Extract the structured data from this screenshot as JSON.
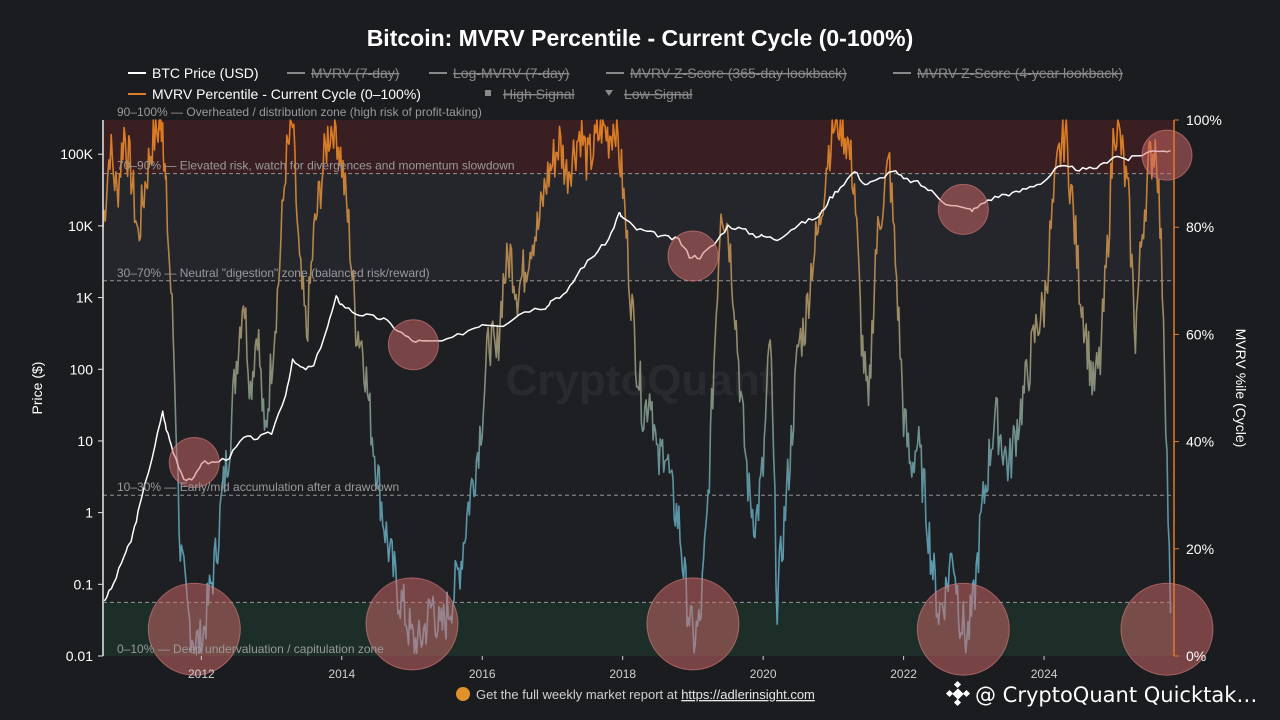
{
  "chart_data": {
    "type": "line",
    "title": "Bitcoin: MVRV Percentile - Current Cycle (0-100%)",
    "legend": [
      {
        "name": "BTC Price (USD)",
        "color": "#ffffff",
        "style": "line",
        "hidden": false
      },
      {
        "name": "MVRV (7-day)",
        "color": "#8a8a8a",
        "style": "line",
        "hidden": true
      },
      {
        "name": "Log-MVRV (7-day)",
        "color": "#8a8a8a",
        "style": "line",
        "hidden": true
      },
      {
        "name": "MVRV Z-Score (365-day lookback)",
        "color": "#8a8a8a",
        "style": "line",
        "hidden": true
      },
      {
        "name": "MVRV Z-Score (4-year lookback)",
        "color": "#8a8a8a",
        "style": "line",
        "hidden": true
      },
      {
        "name": "MVRV Percentile - Current Cycle (0–100%)",
        "color": "#e07b2a",
        "style": "line",
        "hidden": false
      },
      {
        "name": "High Signal",
        "color": "#8a8a8a",
        "style": "square",
        "hidden": true
      },
      {
        "name": "Low Signal",
        "color": "#8a8a8a",
        "style": "triangle",
        "hidden": true
      }
    ],
    "ylabel_left": "Price ($)",
    "ylabel_right": "MVRV %ile (Cycle)",
    "y_left_scale": "log",
    "y_left_range": [
      0.01,
      300000
    ],
    "y_left_ticks": [
      {
        "value": 0.01,
        "label": "0.01"
      },
      {
        "value": 0.1,
        "label": "0.1"
      },
      {
        "value": 1,
        "label": "1"
      },
      {
        "value": 10,
        "label": "10"
      },
      {
        "value": 100,
        "label": "100"
      },
      {
        "value": 1000,
        "label": "1K"
      },
      {
        "value": 10000,
        "label": "10K"
      },
      {
        "value": 100000,
        "label": "100K"
      }
    ],
    "y_right_range": [
      0,
      100
    ],
    "y_right_ticks": [
      {
        "value": 0,
        "label": "0%"
      },
      {
        "value": 20,
        "label": "20%"
      },
      {
        "value": 40,
        "label": "40%"
      },
      {
        "value": 60,
        "label": "60%"
      },
      {
        "value": 80,
        "label": "80%"
      },
      {
        "value": 100,
        "label": "100%"
      }
    ],
    "x_range": [
      2010.6,
      2025.85
    ],
    "x_ticks": [
      {
        "value": 2012,
        "label": "2012"
      },
      {
        "value": 2014,
        "label": "2014"
      },
      {
        "value": 2016,
        "label": "2016"
      },
      {
        "value": 2018,
        "label": "2018"
      },
      {
        "value": 2020,
        "label": "2020"
      },
      {
        "value": 2022,
        "label": "2022"
      },
      {
        "value": 2024,
        "label": "2024"
      }
    ],
    "zones": [
      {
        "from": 90,
        "to": 100,
        "color": "#5a1f1f",
        "opacity": 0.45,
        "line_color": "#c04848",
        "label": "90–100% — Overheated / distribution zone (high risk of profit-taking)"
      },
      {
        "from": 70,
        "to": 90,
        "color": "#2c2d33",
        "opacity": 0.5,
        "line_color": "#bbbbbb",
        "label": "70–90% — Elevated risk, watch for divergences and momentum slowdown"
      },
      {
        "from": 30,
        "to": 70,
        "color": "#1d1e22",
        "opacity": 0.0,
        "line_color": "#bbbbbb",
        "label": "30–70% — Neutral \"digestion\" zone (balanced risk/reward)"
      },
      {
        "from": 10,
        "to": 30,
        "color": "#1d1e22",
        "opacity": 0.0,
        "line_color": "#bbbbbb",
        "label": "10–30% — Early/mid accumulation after a drawdown"
      },
      {
        "from": 0,
        "to": 10,
        "color": "#1b3a2c",
        "opacity": 0.55,
        "line_color": "#bbbbbb",
        "label": "0–10% — Deep undervaluation / capitulation zone"
      }
    ],
    "series": [
      {
        "name": "BTC Price (USD)",
        "axis": "left",
        "x": [
          2010.62,
          2010.75,
          2010.9,
          2011.0,
          2011.1,
          2011.3,
          2011.45,
          2011.5,
          2011.6,
          2011.75,
          2011.9,
          2012.0,
          2012.2,
          2012.4,
          2012.6,
          2012.8,
          2013.0,
          2013.2,
          2013.3,
          2013.45,
          2013.6,
          2013.8,
          2013.92,
          2014.0,
          2014.2,
          2014.4,
          2014.6,
          2014.8,
          2015.0,
          2015.2,
          2015.5,
          2015.8,
          2016.0,
          2016.3,
          2016.6,
          2016.9,
          2017.0,
          2017.2,
          2017.4,
          2017.6,
          2017.8,
          2017.95,
          2018.0,
          2018.2,
          2018.4,
          2018.6,
          2018.8,
          2018.95,
          2019.1,
          2019.3,
          2019.5,
          2019.7,
          2019.9,
          2020.0,
          2020.2,
          2020.4,
          2020.6,
          2020.8,
          2020.95,
          2021.1,
          2021.3,
          2021.45,
          2021.6,
          2021.85,
          2022.0,
          2022.2,
          2022.4,
          2022.6,
          2022.9,
          2023.0,
          2023.2,
          2023.4,
          2023.6,
          2023.8,
          2024.0,
          2024.2,
          2024.4,
          2024.6,
          2024.8,
          2025.0,
          2025.2,
          2025.4,
          2025.6,
          2025.8
        ],
        "y": [
          0.06,
          0.1,
          0.25,
          0.4,
          1.0,
          6,
          25,
          15,
          7,
          3,
          3,
          5,
          5,
          6,
          11,
          11,
          13,
          45,
          130,
          100,
          110,
          400,
          1000,
          800,
          600,
          550,
          500,
          350,
          250,
          240,
          250,
          350,
          430,
          420,
          650,
          740,
          950,
          1150,
          2500,
          4000,
          6500,
          15000,
          13000,
          9000,
          8000,
          7000,
          6400,
          3800,
          3700,
          5500,
          10000,
          9000,
          7300,
          7200,
          6500,
          9000,
          11500,
          13500,
          24000,
          35000,
          58000,
          38000,
          42000,
          60000,
          45000,
          40000,
          30000,
          21000,
          17000,
          16800,
          23000,
          27000,
          29000,
          35000,
          42000,
          66000,
          64000,
          60000,
          68000,
          95000,
          85000,
          100000,
          115000,
          112000
        ]
      },
      {
        "name": "MVRV Percentile - Current Cycle (0–100%)",
        "axis": "right",
        "x": [
          2010.6,
          2010.7,
          2010.8,
          2010.9,
          2011.0,
          2011.1,
          2011.2,
          2011.3,
          2011.4,
          2011.45,
          2011.5,
          2011.6,
          2011.7,
          2011.8,
          2011.9,
          2012.0,
          2012.1,
          2012.2,
          2012.3,
          2012.4,
          2012.5,
          2012.6,
          2012.7,
          2012.8,
          2012.9,
          2013.0,
          2013.1,
          2013.2,
          2013.3,
          2013.4,
          2013.5,
          2013.6,
          2013.7,
          2013.8,
          2013.9,
          2014.0,
          2014.1,
          2014.2,
          2014.3,
          2014.4,
          2014.5,
          2014.6,
          2014.7,
          2014.8,
          2014.9,
          2015.0,
          2015.1,
          2015.2,
          2015.3,
          2015.4,
          2015.5,
          2015.6,
          2015.7,
          2015.8,
          2015.9,
          2016.0,
          2016.1,
          2016.2,
          2016.3,
          2016.4,
          2016.5,
          2016.6,
          2016.7,
          2016.8,
          2016.9,
          2017.0,
          2017.1,
          2017.2,
          2017.3,
          2017.4,
          2017.5,
          2017.6,
          2017.7,
          2017.8,
          2017.9,
          2018.0,
          2018.1,
          2018.2,
          2018.3,
          2018.4,
          2018.5,
          2018.6,
          2018.7,
          2018.8,
          2018.9,
          2019.0,
          2019.1,
          2019.2,
          2019.3,
          2019.4,
          2019.5,
          2019.6,
          2019.7,
          2019.8,
          2019.9,
          2020.0,
          2020.1,
          2020.2,
          2020.3,
          2020.4,
          2020.5,
          2020.6,
          2020.7,
          2020.8,
          2020.9,
          2021.0,
          2021.1,
          2021.2,
          2021.3,
          2021.4,
          2021.5,
          2021.6,
          2021.7,
          2021.8,
          2021.9,
          2022.0,
          2022.1,
          2022.2,
          2022.3,
          2022.4,
          2022.5,
          2022.6,
          2022.7,
          2022.8,
          2022.9,
          2023.0,
          2023.1,
          2023.2,
          2023.3,
          2023.4,
          2023.5,
          2023.6,
          2023.7,
          2023.8,
          2023.9,
          2024.0,
          2024.1,
          2024.2,
          2024.3,
          2024.4,
          2024.5,
          2024.6,
          2024.7,
          2024.8,
          2024.9,
          2025.0,
          2025.1,
          2025.2,
          2025.3,
          2025.4,
          2025.5,
          2025.6,
          2025.7,
          2025.8
        ],
        "y": [
          80,
          95,
          86,
          98,
          90,
          78,
          88,
          96,
          99,
          100,
          85,
          60,
          20,
          8,
          3,
          2,
          10,
          18,
          30,
          40,
          55,
          68,
          50,
          62,
          40,
          55,
          70,
          92,
          99,
          72,
          60,
          78,
          88,
          97,
          100,
          92,
          80,
          62,
          58,
          45,
          35,
          25,
          18,
          12,
          8,
          3,
          2,
          6,
          10,
          4,
          8,
          12,
          18,
          28,
          35,
          45,
          60,
          55,
          70,
          75,
          68,
          72,
          78,
          80,
          88,
          92,
          96,
          90,
          94,
          98,
          92,
          95,
          99,
          97,
          100,
          88,
          70,
          55,
          45,
          50,
          35,
          40,
          30,
          25,
          12,
          3,
          6,
          25,
          55,
          85,
          80,
          65,
          45,
          30,
          25,
          35,
          60,
          10,
          25,
          40,
          58,
          62,
          74,
          80,
          92,
          99,
          100,
          96,
          88,
          60,
          45,
          75,
          85,
          92,
          70,
          45,
          35,
          40,
          30,
          18,
          8,
          12,
          20,
          8,
          3,
          10,
          25,
          35,
          45,
          40,
          35,
          42,
          48,
          55,
          62,
          65,
          80,
          92,
          98,
          85,
          70,
          60,
          50,
          55,
          75,
          100,
          95,
          85,
          60,
          80,
          92,
          96,
          65,
          8
        ]
      }
    ],
    "highlight_circles": [
      {
        "x": 2011.9,
        "y": 5,
        "axis": "left"
      },
      {
        "x": 2015.02,
        "y": 220,
        "axis": "left"
      },
      {
        "x": 2019.0,
        "y": 3800,
        "axis": "left"
      },
      {
        "x": 2022.85,
        "y": 17000,
        "axis": "left"
      },
      {
        "x": 2025.75,
        "y": 97000,
        "axis": "left"
      },
      {
        "x": 2011.9,
        "y": 5,
        "axis": "right"
      },
      {
        "x": 2015.0,
        "y": 6,
        "axis": "right"
      },
      {
        "x": 2019.0,
        "y": 6,
        "axis": "right"
      },
      {
        "x": 2022.85,
        "y": 5,
        "axis": "right"
      },
      {
        "x": 2025.75,
        "y": 5,
        "axis": "right"
      }
    ],
    "watermark": "CryptoQuant"
  },
  "footer": {
    "text_prefix": "Get the full weekly market report at ",
    "link": "https://adlerinsight.com"
  },
  "brand": {
    "text": "@ CryptoQuant Quicktak…"
  }
}
